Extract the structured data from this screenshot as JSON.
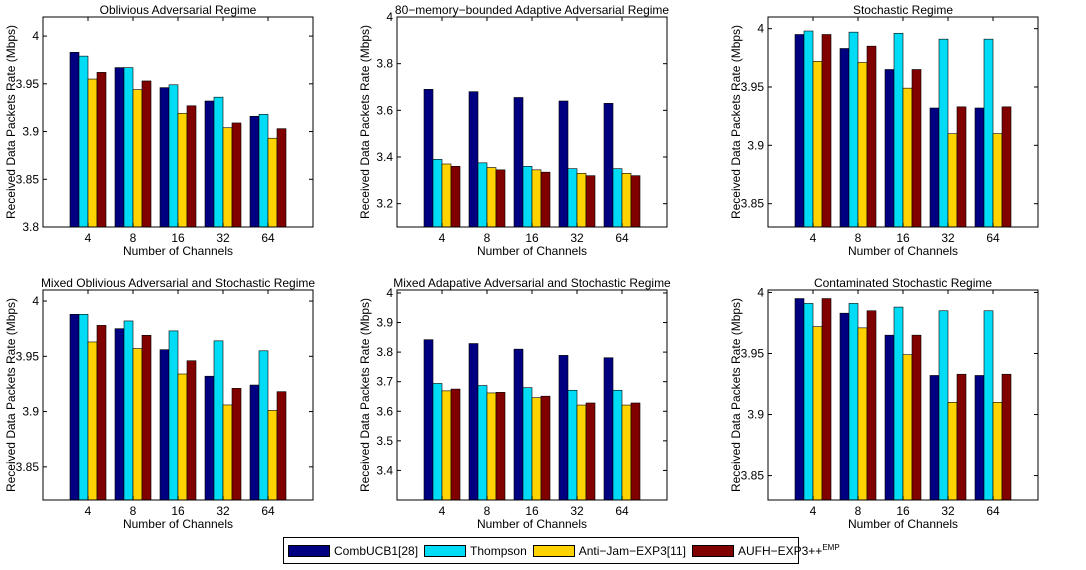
{
  "chart_data": [
    {
      "type": "bar",
      "title": "Oblivious Adversarial Regime",
      "xlabel": "Number of Channels",
      "ylabel": "Received Data Packets Rate (Mbps)",
      "categories": [
        "4",
        "8",
        "16",
        "32",
        "64"
      ],
      "ylim": [
        3.8,
        4.02
      ],
      "yticks": [
        3.8,
        3.85,
        3.9,
        3.95,
        4
      ],
      "ytick_labels": [
        "3.8",
        "3.85",
        "3.9",
        "3.95",
        "4"
      ],
      "series": [
        {
          "name": "CombUCB1[28]",
          "values": [
            3.983,
            3.967,
            3.946,
            3.932,
            3.916
          ]
        },
        {
          "name": "Thompson",
          "values": [
            3.979,
            3.967,
            3.949,
            3.936,
            3.918
          ]
        },
        {
          "name": "Anti-Jam-EXP3[11]",
          "values": [
            3.955,
            3.944,
            3.919,
            3.904,
            3.893
          ]
        },
        {
          "name": "AUFH-EXP3++EMP",
          "values": [
            3.962,
            3.953,
            3.927,
            3.909,
            3.903
          ]
        }
      ]
    },
    {
      "type": "bar",
      "title": "80−memory−bounded Adaptive Adversarial Regime",
      "xlabel": "Number of Channels",
      "ylabel": "Received Data Packets Rate (Mbps)",
      "categories": [
        "4",
        "8",
        "16",
        "32",
        "64"
      ],
      "ylim": [
        3.1,
        4.0
      ],
      "yticks": [
        3.2,
        3.4,
        3.6,
        3.8,
        4
      ],
      "ytick_labels": [
        "3.2",
        "3.4",
        "3.6",
        "3.8",
        "4"
      ],
      "series": [
        {
          "name": "CombUCB1[28]",
          "values": [
            3.69,
            3.68,
            3.655,
            3.64,
            3.63
          ]
        },
        {
          "name": "Thompson",
          "values": [
            3.39,
            3.375,
            3.36,
            3.35,
            3.35
          ]
        },
        {
          "name": "Anti-Jam-EXP3[11]",
          "values": [
            3.37,
            3.355,
            3.345,
            3.33,
            3.33
          ]
        },
        {
          "name": "AUFH-EXP3++EMP",
          "values": [
            3.36,
            3.345,
            3.335,
            3.32,
            3.32
          ]
        }
      ]
    },
    {
      "type": "bar",
      "title": "Stochastic Regime",
      "xlabel": "Number of Channels",
      "ylabel": "Received Data Packets Rate (Mbps)",
      "categories": [
        "4",
        "8",
        "16",
        "32",
        "64"
      ],
      "ylim": [
        3.83,
        4.01
      ],
      "yticks": [
        3.85,
        3.9,
        3.95,
        4
      ],
      "ytick_labels": [
        "3.85",
        "3.9",
        "3.95",
        "4"
      ],
      "series": [
        {
          "name": "CombUCB1[28]",
          "values": [
            3.995,
            3.983,
            3.965,
            3.932,
            3.932
          ]
        },
        {
          "name": "Thompson",
          "values": [
            3.998,
            3.997,
            3.996,
            3.991,
            3.991
          ]
        },
        {
          "name": "Anti-Jam-EXP3[11]",
          "values": [
            3.972,
            3.971,
            3.949,
            3.91,
            3.91
          ]
        },
        {
          "name": "AUFH-EXP3++EMP",
          "values": [
            3.995,
            3.985,
            3.965,
            3.933,
            3.933
          ]
        }
      ]
    },
    {
      "type": "bar",
      "title": "Mixed Oblivious Adversarial and Stochastic Regime",
      "xlabel": "Number of Channels",
      "ylabel": "Received Data Packets Rate (Mbps)",
      "categories": [
        "4",
        "8",
        "16",
        "32",
        "64"
      ],
      "ylim": [
        3.82,
        4.01
      ],
      "yticks": [
        3.85,
        3.9,
        3.95,
        4
      ],
      "ytick_labels": [
        "3.85",
        "3.9",
        "3.95",
        "4"
      ],
      "series": [
        {
          "name": "CombUCB1[28]",
          "values": [
            3.988,
            3.975,
            3.956,
            3.932,
            3.924
          ]
        },
        {
          "name": "Thompson",
          "values": [
            3.988,
            3.982,
            3.973,
            3.964,
            3.955
          ]
        },
        {
          "name": "Anti-Jam-EXP3[11]",
          "values": [
            3.963,
            3.957,
            3.934,
            3.906,
            3.901
          ]
        },
        {
          "name": "AUFH-EXP3++EMP",
          "values": [
            3.978,
            3.969,
            3.946,
            3.921,
            3.918
          ]
        }
      ]
    },
    {
      "type": "bar",
      "title": "Mixed Adapative Adversarial and Stochastic Regime",
      "xlabel": "Number of Channels",
      "ylabel": "Received Data Packets Rate (Mbps)",
      "categories": [
        "4",
        "8",
        "16",
        "32",
        "64"
      ],
      "ylim": [
        3.3,
        4.01
      ],
      "yticks": [
        3.4,
        3.5,
        3.6,
        3.7,
        3.8,
        3.9,
        4
      ],
      "ytick_labels": [
        "3.4",
        "3.5",
        "3.6",
        "3.7",
        "3.8",
        "3.9",
        "4"
      ],
      "series": [
        {
          "name": "CombUCB1[28]",
          "values": [
            3.842,
            3.829,
            3.81,
            3.789,
            3.781
          ]
        },
        {
          "name": "Thompson",
          "values": [
            3.694,
            3.687,
            3.68,
            3.671,
            3.671
          ]
        },
        {
          "name": "Anti-Jam-EXP3[11]",
          "values": [
            3.669,
            3.662,
            3.646,
            3.621,
            3.621
          ]
        },
        {
          "name": "AUFH-EXP3++EMP",
          "values": [
            3.675,
            3.664,
            3.651,
            3.628,
            3.628
          ]
        }
      ]
    },
    {
      "type": "bar",
      "title": "Contaminated Stochastic Regime",
      "xlabel": "Number of Channels",
      "ylabel": "Received Data Packets Rate (Mbps)",
      "categories": [
        "4",
        "8",
        "16",
        "32",
        "64"
      ],
      "ylim": [
        3.83,
        4.002
      ],
      "yticks": [
        3.85,
        3.9,
        3.95,
        4
      ],
      "ytick_labels": [
        "3.85",
        "3.9",
        "3.95",
        "4"
      ],
      "series": [
        {
          "name": "CombUCB1[28]",
          "values": [
            3.995,
            3.983,
            3.965,
            3.932,
            3.932
          ]
        },
        {
          "name": "Thompson",
          "values": [
            3.991,
            3.991,
            3.988,
            3.985,
            3.985
          ]
        },
        {
          "name": "Anti-Jam-EXP3[11]",
          "values": [
            3.972,
            3.971,
            3.949,
            3.91,
            3.91
          ]
        },
        {
          "name": "AUFH-EXP3++EMP",
          "values": [
            3.995,
            3.985,
            3.965,
            3.933,
            3.933
          ]
        }
      ]
    }
  ],
  "legend": {
    "items": [
      {
        "label": "CombUCB1[28]",
        "color": "#000080"
      },
      {
        "label": "Thompson",
        "color": "#00dcf5"
      },
      {
        "label": "Anti−Jam−EXP3[11]",
        "color": "#ffd200"
      },
      {
        "label": "AUFH−EXP3++",
        "sup": "EMP",
        "color": "#800000"
      }
    ]
  },
  "colors": [
    "#000080",
    "#00dcf5",
    "#ffd200",
    "#800000"
  ]
}
